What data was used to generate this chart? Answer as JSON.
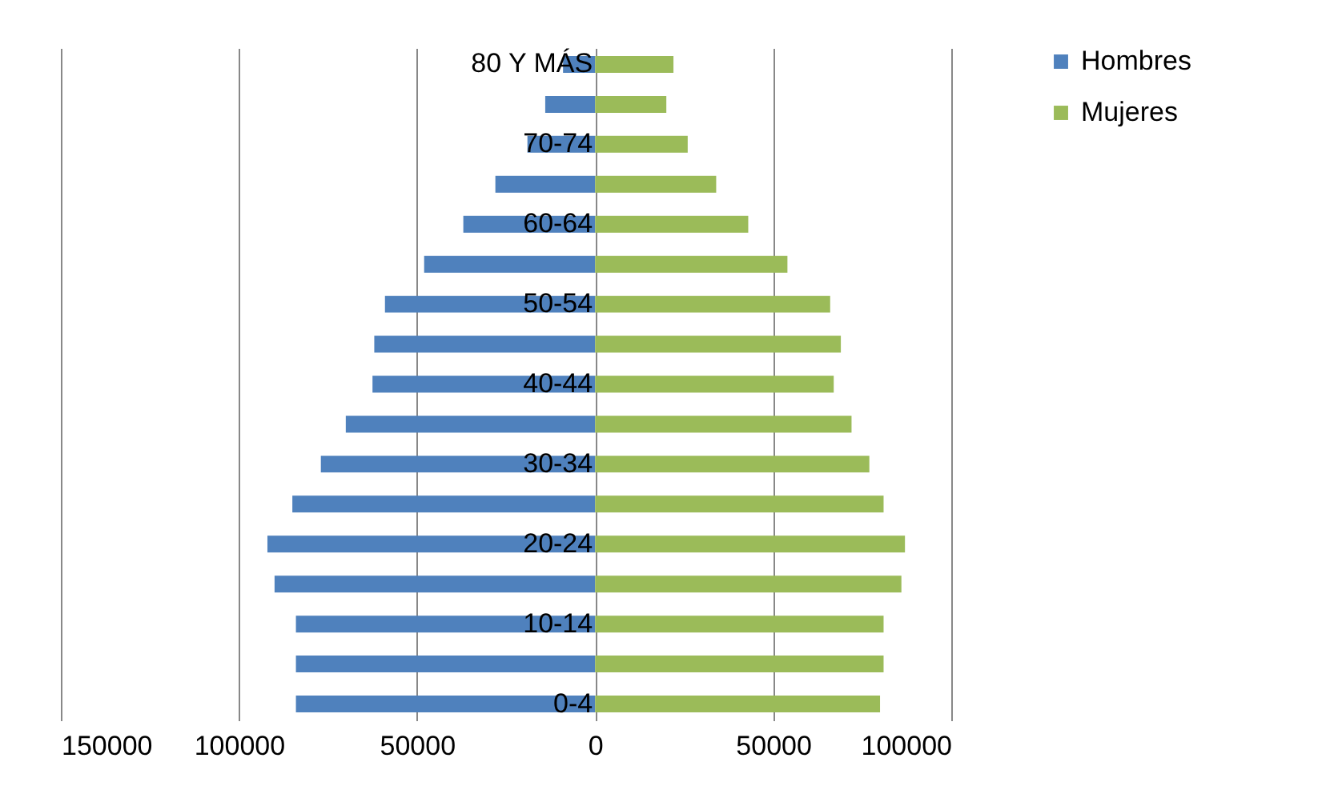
{
  "chart_data": {
    "type": "bar",
    "orientation": "horizontal",
    "stacked": true,
    "categories": [
      "80 Y MÁS",
      null,
      "70-74",
      null,
      "60-64",
      null,
      "50-54",
      null,
      "40-44",
      null,
      "30-34",
      null,
      "20-24",
      null,
      "10-14",
      null,
      "0-4"
    ],
    "series": [
      {
        "name": "Hombres",
        "color": "#4f81bd",
        "values": [
          -9000,
          -14000,
          -19000,
          -28000,
          -37000,
          -48000,
          -59000,
          -62000,
          -62500,
          -70000,
          -77000,
          -85000,
          -92000,
          -90000,
          -84000,
          -84000,
          -84000
        ]
      },
      {
        "name": "Mujeres",
        "color": "#9bbb59",
        "values": [
          22000,
          20000,
          26000,
          34000,
          43000,
          54000,
          66000,
          69000,
          67000,
          72000,
          77000,
          81000,
          87000,
          86000,
          81000,
          81000,
          80000
        ]
      }
    ],
    "xlim": [
      -150000,
      100000
    ],
    "xticks": [
      {
        "value": -150000,
        "label": "150000"
      },
      {
        "value": -100000,
        "label": "100000"
      },
      {
        "value": -50000,
        "label": "50000"
      },
      0,
      50000,
      100000
    ],
    "grid": "x",
    "legend": "right"
  }
}
